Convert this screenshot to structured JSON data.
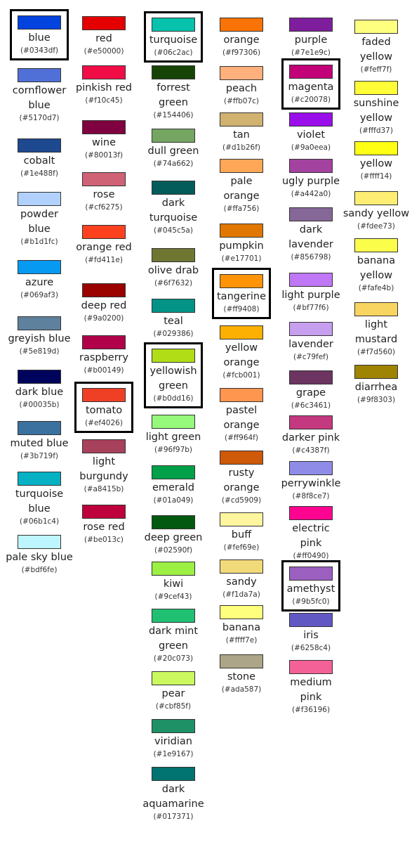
{
  "columns": [
    [
      {
        "name": "blue",
        "hex": "(#0343df)",
        "color": "#0343df",
        "highlighted": true
      },
      {
        "name": "cornflower\nblue",
        "hex": "(#5170d7)",
        "color": "#5170d7"
      },
      {
        "name": "cobalt",
        "hex": "(#1e488f)",
        "color": "#1e488f"
      },
      {
        "name": "powder\nblue",
        "hex": "(#b1d1fc)",
        "color": "#b1d1fc"
      },
      {
        "name": "azure",
        "hex": "(#069af3)",
        "color": "#069af3"
      },
      {
        "name": "greyish blue",
        "hex": "(#5e819d)",
        "color": "#5e819d"
      },
      {
        "name": "dark blue",
        "hex": "(#00035b)",
        "color": "#00035b"
      },
      {
        "name": "muted blue",
        "hex": "(#3b719f)",
        "color": "#3b719f"
      },
      {
        "name": "turquoise\nblue",
        "hex": "(#06b1c4)",
        "color": "#06b1c4"
      },
      {
        "name": "pale sky blue",
        "hex": "(#bdf6fe)",
        "color": "#bdf6fe"
      }
    ],
    [
      {
        "name": "red",
        "hex": "(#e50000)",
        "color": "#e50000"
      },
      {
        "name": "pinkish red",
        "hex": "(#f10c45)",
        "color": "#f10c45"
      },
      {
        "name": "wine",
        "hex": "(#80013f)",
        "color": "#80013f"
      },
      {
        "name": "rose",
        "hex": "(#cf6275)",
        "color": "#cf6275"
      },
      {
        "name": "orange red",
        "hex": "(#fd411e)",
        "color": "#fd411e"
      },
      {
        "name": "deep red",
        "hex": "(#9a0200)",
        "color": "#9a0200"
      },
      {
        "name": "raspberry",
        "hex": "(#b00149)",
        "color": "#b00149"
      },
      {
        "name": "tomato",
        "hex": "(#ef4026)",
        "color": "#ef4026",
        "highlighted": true
      },
      {
        "name": "light\nburgundy",
        "hex": "(#a8415b)",
        "color": "#a8415b"
      },
      {
        "name": "rose red",
        "hex": "(#be013c)",
        "color": "#be013c"
      }
    ],
    [
      {
        "name": "turquoise",
        "hex": "(#06c2ac)",
        "color": "#06c2ac",
        "highlighted": true
      },
      {
        "name": "forrest\ngreen",
        "hex": "(#154406)",
        "color": "#154406"
      },
      {
        "name": "dull green",
        "hex": "(#74a662)",
        "color": "#74a662"
      },
      {
        "name": "dark\nturquoise",
        "hex": "(#045c5a)",
        "color": "#045c5a"
      },
      {
        "name": "olive drab",
        "hex": "(#6f7632)",
        "color": "#6f7632"
      },
      {
        "name": "teal",
        "hex": "(#029386)",
        "color": "#029386"
      },
      {
        "name": "yellowish\ngreen",
        "hex": "(#b0dd16)",
        "color": "#b0dd16",
        "highlighted": true
      },
      {
        "name": "light green",
        "hex": "(#96f97b)",
        "color": "#96f97b"
      },
      {
        "name": "emerald",
        "hex": "(#01a049)",
        "color": "#01a049"
      },
      {
        "name": "deep green",
        "hex": "(#02590f)",
        "color": "#02590f"
      },
      {
        "name": "kiwi",
        "hex": "(#9cef43)",
        "color": "#9cef43"
      },
      {
        "name": "dark mint\ngreen",
        "hex": "(#20c073)",
        "color": "#20c073"
      },
      {
        "name": "pear",
        "hex": "(#cbf85f)",
        "color": "#cbf85f"
      },
      {
        "name": "viridian",
        "hex": "(#1e9167)",
        "color": "#1e9167"
      },
      {
        "name": "dark\naquamarine",
        "hex": "(#017371)",
        "color": "#017371"
      }
    ],
    [
      {
        "name": "orange",
        "hex": "(#f97306)",
        "color": "#f97306"
      },
      {
        "name": "peach",
        "hex": "(#ffb07c)",
        "color": "#ffb07c"
      },
      {
        "name": "tan",
        "hex": "(#d1b26f)",
        "color": "#d1b26f"
      },
      {
        "name": "pale\norange",
        "hex": "(#ffa756)",
        "color": "#ffa756"
      },
      {
        "name": "pumpkin",
        "hex": "(#e17701)",
        "color": "#e17701"
      },
      {
        "name": "tangerine",
        "hex": "(#ff9408)",
        "color": "#ff9408",
        "highlighted": true
      },
      {
        "name": "yellow\norange",
        "hex": "(#fcb001)",
        "color": "#fcb001"
      },
      {
        "name": "pastel\norange",
        "hex": "(#ff964f)",
        "color": "#ff964f"
      },
      {
        "name": "rusty\norange",
        "hex": "(#cd5909)",
        "color": "#cd5909"
      },
      {
        "name": "buff",
        "hex": "(#fef69e)",
        "color": "#fef69e"
      },
      {
        "name": "sandy",
        "hex": "(#f1da7a)",
        "color": "#f1da7a"
      },
      {
        "name": "banana",
        "hex": "(#ffff7e)",
        "color": "#ffff7e"
      },
      {
        "name": "stone",
        "hex": "(#ada587)",
        "color": "#ada587"
      }
    ],
    [
      {
        "name": "purple",
        "hex": "(#7e1e9c)",
        "color": "#7e1e9c"
      },
      {
        "name": "magenta",
        "hex": "(#c20078)",
        "color": "#c20078",
        "highlighted": true
      },
      {
        "name": "violet",
        "hex": "(#9a0eea)",
        "color": "#9a0eea"
      },
      {
        "name": "ugly purple",
        "hex": "(#a442a0)",
        "color": "#a442a0"
      },
      {
        "name": "dark\nlavender",
        "hex": "(#856798)",
        "color": "#856798"
      },
      {
        "name": "light purple",
        "hex": "(#bf77f6)",
        "color": "#bf77f6"
      },
      {
        "name": "lavender",
        "hex": "(#c79fef)",
        "color": "#c79fef"
      },
      {
        "name": "grape",
        "hex": "(#6c3461)",
        "color": "#6c3461"
      },
      {
        "name": "darker pink",
        "hex": "(#c4387f)",
        "color": "#c4387f"
      },
      {
        "name": "perrywinkle",
        "hex": "(#8f8ce7)",
        "color": "#8f8ce7"
      },
      {
        "name": "electric\npink",
        "hex": "(#ff0490)",
        "color": "#ff0490"
      },
      {
        "name": "amethyst",
        "hex": "(#9b5fc0)",
        "color": "#9b5fc0",
        "highlighted": true
      },
      {
        "name": "iris",
        "hex": "(#6258c4)",
        "color": "#6258c4"
      },
      {
        "name": "medium\npink",
        "hex": "(#f36196)",
        "color": "#f36196"
      }
    ],
    [
      {
        "name": "faded\nyellow",
        "hex": "(#feff7f)",
        "color": "#feff7f"
      },
      {
        "name": "sunshine\nyellow",
        "hex": "(#fffd37)",
        "color": "#fffd37"
      },
      {
        "name": "yellow",
        "hex": "(#ffff14)",
        "color": "#ffff14"
      },
      {
        "name": "sandy yellow",
        "hex": "(#fdee73)",
        "color": "#fdee73"
      },
      {
        "name": "banana\nyellow",
        "hex": "(#fafe4b)",
        "color": "#fafe4b"
      },
      {
        "name": "light\nmustard",
        "hex": "(#f7d560)",
        "color": "#f7d560"
      },
      {
        "name": "diarrhea",
        "hex": "(#9f8303)",
        "color": "#9f8303"
      }
    ]
  ]
}
